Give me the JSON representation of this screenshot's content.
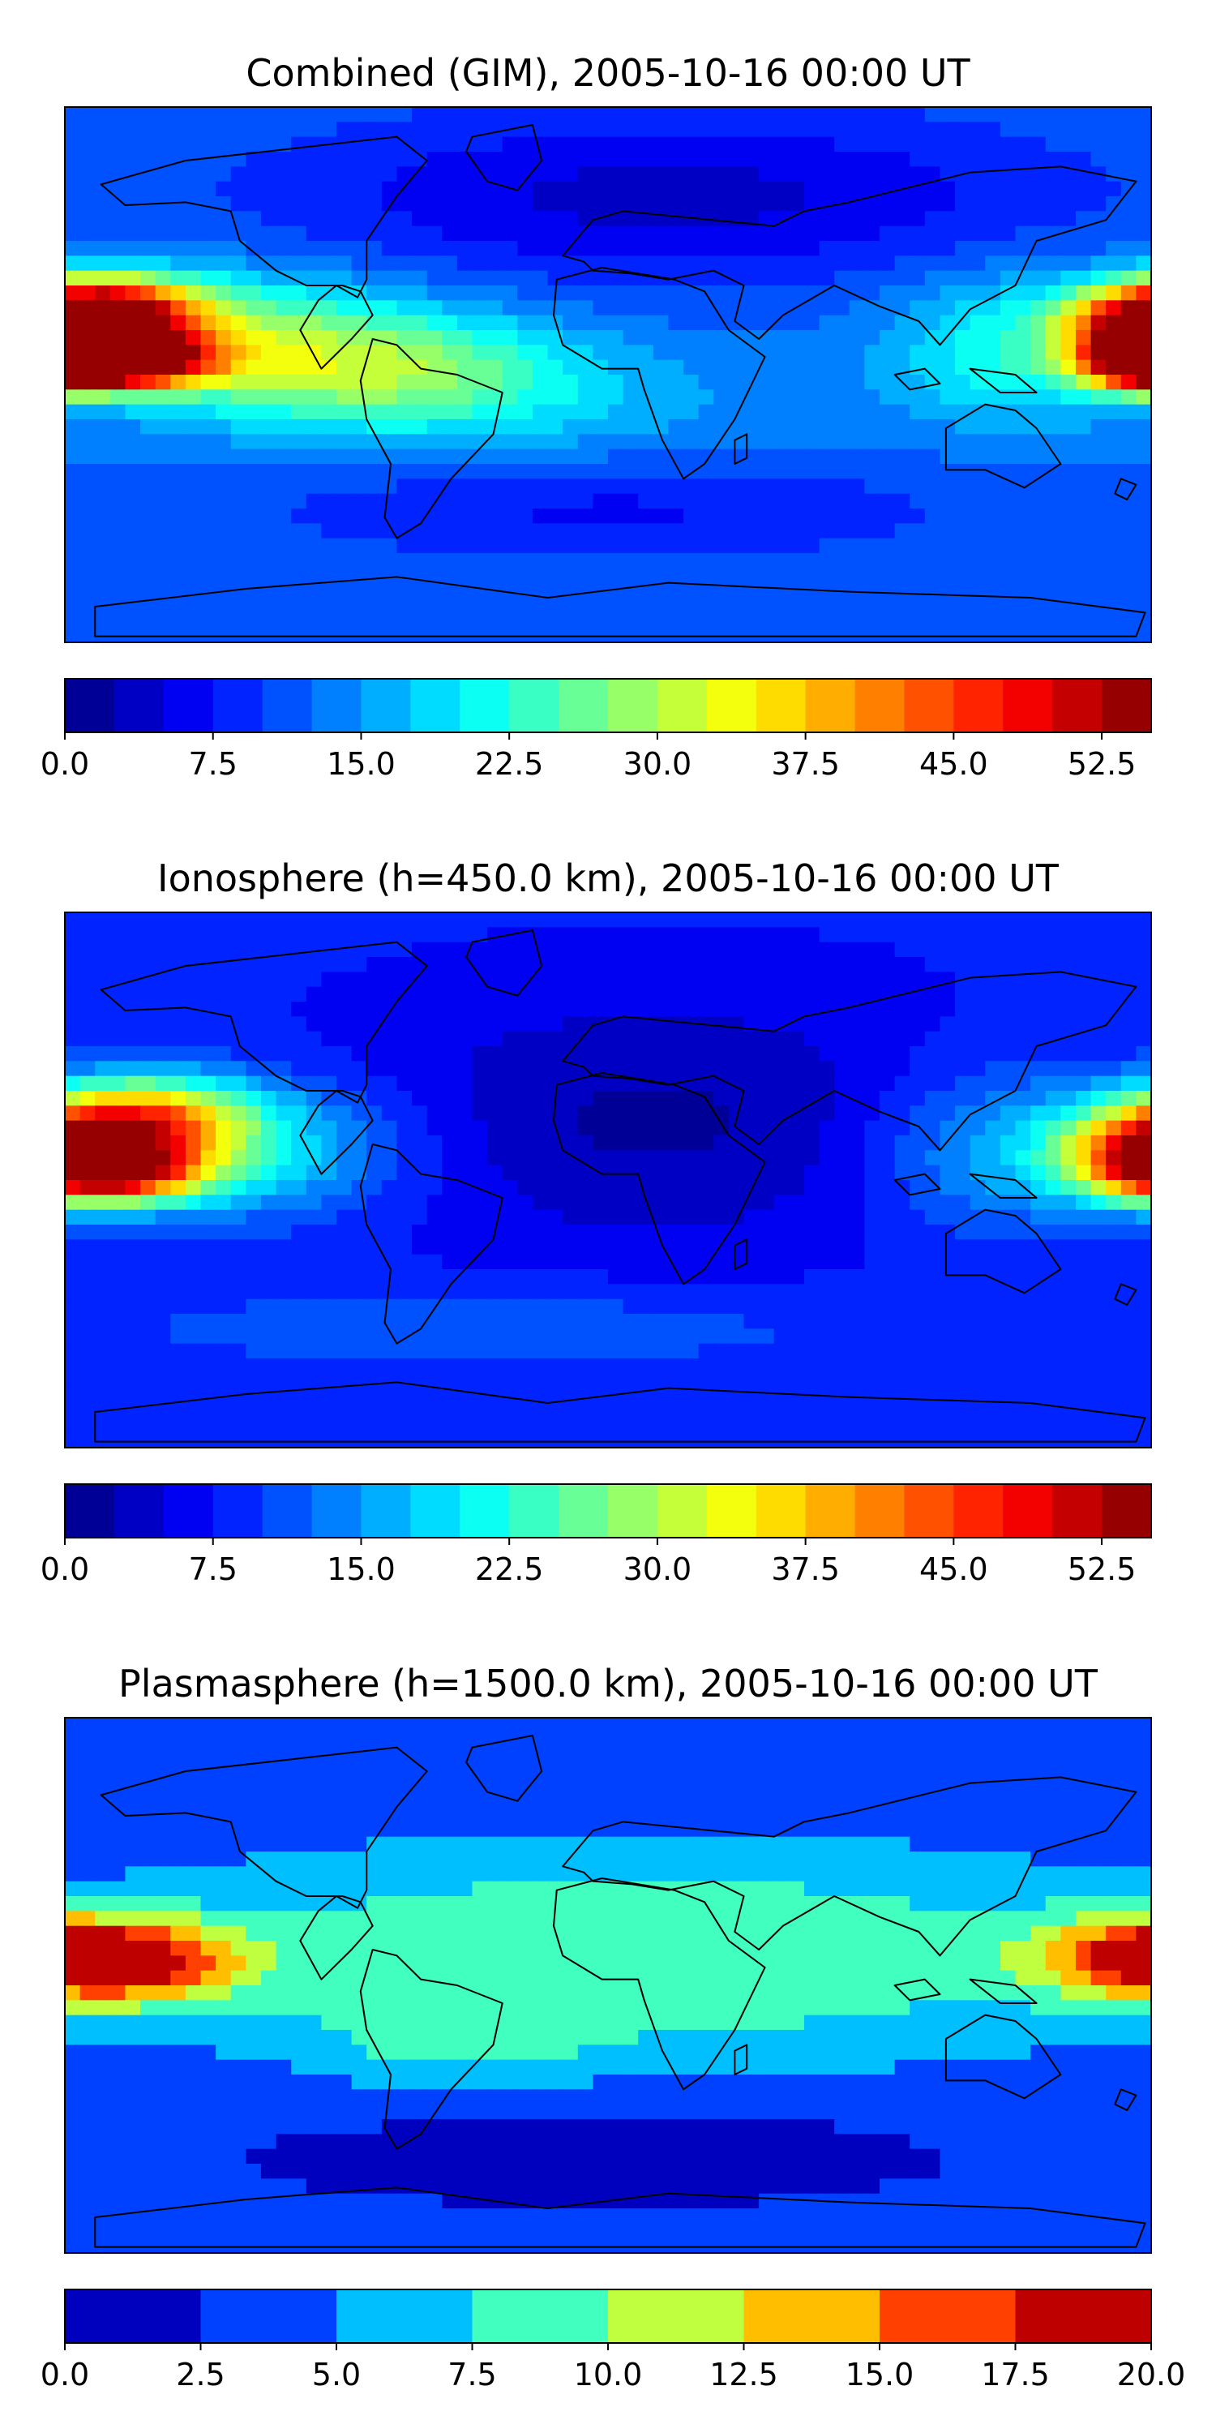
{
  "panels": [
    {
      "title": "Combined (GIM), 2005-10-16 00:00 UT",
      "colorbar": {
        "vmin": 0,
        "vmax": 55,
        "levels": 22,
        "ticks": [
          "0.0",
          "7.5",
          "15.0",
          "22.5",
          "30.0",
          "37.5",
          "45.0",
          "52.5"
        ],
        "tick_values": [
          0,
          7.5,
          15,
          22.5,
          30,
          37.5,
          45,
          52.5
        ]
      },
      "field": {
        "base": 12,
        "features": [
          {
            "lon": -165,
            "lat": 20,
            "amp": 38,
            "slon": 22,
            "slat": 9
          },
          {
            "lon": -160,
            "lat": 4,
            "amp": 40,
            "slon": 20,
            "slat": 6
          },
          {
            "lon": -120,
            "lat": 10,
            "amp": 14,
            "slon": 38,
            "slat": 16
          },
          {
            "lon": -65,
            "lat": 2,
            "amp": 12,
            "slon": 40,
            "slat": 14
          },
          {
            "lon": 178,
            "lat": 15,
            "amp": 26,
            "slon": 18,
            "slat": 9
          },
          {
            "lon": 178,
            "lat": 3,
            "amp": 30,
            "slon": 14,
            "slat": 6
          },
          {
            "lon": 135,
            "lat": 8,
            "amp": 10,
            "slon": 30,
            "slat": 18
          },
          {
            "lon": 20,
            "lat": 60,
            "amp": -8,
            "slon": 90,
            "slat": 20
          },
          {
            "lon": 0,
            "lat": -45,
            "amp": -5,
            "slon": 80,
            "slat": 12
          },
          {
            "lon": -20,
            "lat": -10,
            "amp": 4,
            "slon": 60,
            "slat": 15
          }
        ]
      }
    },
    {
      "title": "Ionosphere  (h=450.0 km), 2005-10-16 00:00 UT",
      "colorbar": {
        "vmin": 0,
        "vmax": 55,
        "levels": 22,
        "ticks": [
          "0.0",
          "7.5",
          "15.0",
          "22.5",
          "30.0",
          "37.5",
          "45.0",
          "52.5"
        ],
        "tick_values": [
          0,
          7.5,
          15,
          22.5,
          30,
          37.5,
          45,
          52.5
        ]
      },
      "field": {
        "base": 8,
        "features": [
          {
            "lon": -155,
            "lat": 20,
            "amp": 30,
            "slon": 25,
            "slat": 10
          },
          {
            "lon": -165,
            "lat": 2,
            "amp": 34,
            "slon": 22,
            "slat": 7
          },
          {
            "lon": -120,
            "lat": 10,
            "amp": 12,
            "slon": 38,
            "slat": 16
          },
          {
            "lon": 178,
            "lat": 10,
            "amp": 26,
            "slon": 20,
            "slat": 10
          },
          {
            "lon": 130,
            "lat": 10,
            "amp": 9,
            "slon": 30,
            "slat": 20
          },
          {
            "lon": 15,
            "lat": 20,
            "amp": -6,
            "slon": 70,
            "slat": 30
          },
          {
            "lon": -40,
            "lat": -50,
            "amp": 4,
            "slon": 90,
            "slat": 10
          }
        ]
      }
    },
    {
      "title": "Plasmasphere (h=1500.0 km), 2005-10-16 00:00 UT",
      "colorbar": {
        "vmin": 0,
        "vmax": 20,
        "levels": 8,
        "ticks": [
          "0.0",
          "2.5",
          "5.0",
          "7.5",
          "10.0",
          "12.5",
          "15.0",
          "17.5",
          "20.0"
        ],
        "tick_values": [
          0,
          2.5,
          5,
          7.5,
          10,
          12.5,
          15,
          17.5,
          20
        ]
      },
      "field": {
        "base": 2.5,
        "features": [
          {
            "lon": 10,
            "lat": 10,
            "amp": 7.5,
            "slon": 140,
            "slat": 28
          },
          {
            "lon": -160,
            "lat": 8,
            "amp": 12,
            "slon": 28,
            "slat": 10
          },
          {
            "lon": 175,
            "lat": 10,
            "amp": 8,
            "slon": 25,
            "slat": 10
          },
          {
            "lon": -50,
            "lat": -20,
            "amp": 3,
            "slon": 30,
            "slat": 10
          },
          {
            "lon": 0,
            "lat": -50,
            "amp": -1.5,
            "slon": 70,
            "slat": 10
          }
        ]
      }
    }
  ],
  "map_extent": {
    "lon": [
      -180,
      180
    ],
    "lat": [
      -90,
      90
    ]
  }
}
